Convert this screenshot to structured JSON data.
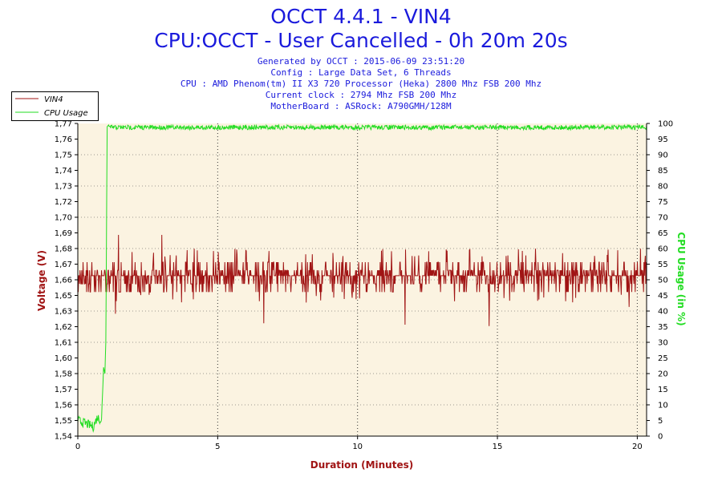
{
  "header": {
    "title": "OCCT 4.4.1 - VIN4",
    "subtitle": "CPU:OCCT - User Cancelled - 0h 20m 20s",
    "info": [
      "Generated by OCCT : 2015-06-09 23:51:20",
      "Config : Large Data Set, 6 Threads",
      "CPU : AMD Phenom(tm) II X3 720 Processor (Heka) 2800 Mhz FSB 200 Mhz",
      "Current clock : 2794 Mhz FSB 200 Mhz",
      "MotherBoard : ASRock: A790GMH/128M"
    ]
  },
  "colors": {
    "vin4": "#a01414",
    "cpu": "#22dd22",
    "plot_bg": "#fbf3e1",
    "axis_left_label": "#a01414",
    "axis_right_label": "#22dd22",
    "title": "#1a1adc"
  },
  "chart_data": {
    "type": "line",
    "xlabel": "Duration (Minutes)",
    "ylabel": "Voltage (V)",
    "y2label": "CPU Usage (in %)",
    "xlim": [
      0,
      20.333
    ],
    "ylim": [
      1.54,
      1.77
    ],
    "y2lim": [
      0,
      100
    ],
    "x_ticks": [
      "0",
      "5",
      "10",
      "15",
      "20"
    ],
    "y_ticks": [
      "1,54",
      "1,55",
      "1,56",
      "1,57",
      "1,58",
      "1,60",
      "1,61",
      "1,62",
      "1,63",
      "1,65",
      "1,66",
      "1,67",
      "1,68",
      "1,69",
      "1,70",
      "1,72",
      "1,73",
      "1,74",
      "1,75",
      "1,76",
      "1,77"
    ],
    "y2_ticks": [
      "0",
      "5",
      "10",
      "15",
      "20",
      "25",
      "30",
      "35",
      "40",
      "45",
      "50",
      "55",
      "60",
      "65",
      "70",
      "75",
      "80",
      "85",
      "90",
      "95",
      "100"
    ],
    "grid": true,
    "legend_position": "top-left",
    "series": [
      {
        "name": "VIN4",
        "axis": "left",
        "baseline": 1.658,
        "values_summary": {
          "min": 1.62,
          "max": 1.688,
          "typical_range": [
            1.648,
            1.672
          ]
        },
        "spikes": [
          {
            "x": 1.45,
            "y": 1.688
          },
          {
            "x": 3.0,
            "y": 1.688
          },
          {
            "x": 1.35,
            "y": 1.63
          },
          {
            "x": 6.65,
            "y": 1.623
          },
          {
            "x": 11.7,
            "y": 1.622
          },
          {
            "x": 14.7,
            "y": 1.621
          },
          {
            "x": 19.7,
            "y": 1.635
          }
        ]
      },
      {
        "name": "CPU Usage",
        "axis": "right",
        "points": [
          [
            0,
            5
          ],
          [
            0.3,
            4
          ],
          [
            0.55,
            3
          ],
          [
            0.7,
            6
          ],
          [
            0.85,
            5
          ],
          [
            0.92,
            22
          ],
          [
            0.97,
            20
          ],
          [
            1.0,
            30
          ],
          [
            1.05,
            99
          ],
          [
            1.1,
            99.5
          ],
          [
            20.333,
            99.5
          ]
        ]
      }
    ]
  }
}
